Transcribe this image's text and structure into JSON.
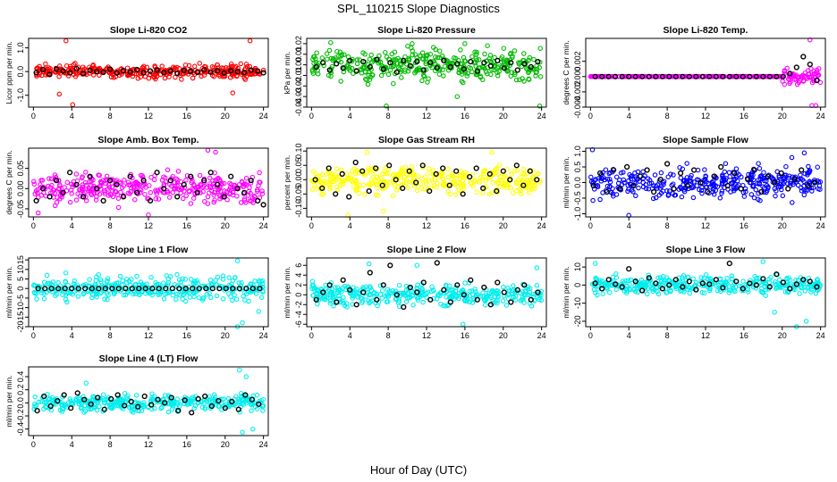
{
  "figure": {
    "title": "SPL_110215  Slope Diagnostics",
    "xlabel": "Hour of Day (UTC)"
  },
  "chart_data": [
    {
      "type": "scatter",
      "title": "Slope Li-820 CO2",
      "ylabel": "Licor ppm per min.",
      "color": "#ff0000",
      "xlim": [
        -0.5,
        24.5
      ],
      "ylim": [
        -1.5,
        1.4
      ],
      "xticks": [
        0,
        4,
        8,
        12,
        16,
        20,
        24
      ],
      "yticks": [
        -1.0,
        0.0,
        1.0
      ],
      "ytick_labels": [
        "-1.0",
        "0.0",
        "1.0"
      ],
      "spread": 0.22,
      "outliers": [
        [
          3.4,
          1.3
        ],
        [
          22.6,
          1.3
        ],
        [
          4.1,
          -1.4
        ],
        [
          2.7,
          -0.95
        ],
        [
          20.8,
          -0.9
        ]
      ],
      "x": [
        0.3,
        1.0,
        1.7,
        2.4,
        3.1,
        3.8,
        4.5,
        5.2,
        5.9,
        6.6,
        7.3,
        8.0,
        8.7,
        9.4,
        10.1,
        10.8,
        11.5,
        12.2,
        12.9,
        13.6,
        14.3,
        15.0,
        15.7,
        16.4,
        17.1,
        17.8,
        18.5,
        19.2,
        19.9,
        20.6,
        21.3,
        22.0,
        22.7,
        23.4,
        24.0
      ],
      "y": [
        -0.05,
        0.08,
        -0.12,
        0.1,
        0.02,
        -0.05,
        0.12,
        -0.08,
        0.05,
        0.0,
        -0.03,
        0.1,
        -0.06,
        0.04,
        -0.02,
        0.08,
        -0.05,
        0.02,
        0.06,
        -0.04,
        0.03,
        -0.07,
        0.05,
        0.01,
        -0.03,
        0.07,
        -0.02,
        0.04,
        -0.06,
        0.03,
        0.0,
        -0.04,
        0.06,
        0.02,
        -0.05
      ]
    },
    {
      "type": "scatter",
      "title": "Slope Li-820 Pressure",
      "ylabel": "kPa per min.",
      "color": "#00bb00",
      "xlim": [
        -0.5,
        24.5
      ],
      "ylim": [
        -0.04,
        0.025
      ],
      "xticks": [
        0,
        4,
        8,
        12,
        16,
        20,
        24
      ],
      "yticks": [
        -0.04,
        -0.03,
        -0.02,
        -0.01,
        0.0,
        0.01,
        0.02
      ],
      "ytick_labels": [
        "-0.04",
        "-0.03",
        "-0.02",
        "-0.01",
        "0.00",
        "0.01",
        "0.02"
      ],
      "spread": 0.012,
      "outliers": [
        [
          2.0,
          0.021
        ],
        [
          10.5,
          0.02
        ],
        [
          16.0,
          0.02
        ],
        [
          7.8,
          -0.039
        ],
        [
          23.8,
          -0.039
        ],
        [
          15.2,
          -0.03
        ]
      ],
      "x": [
        0.5,
        1.2,
        1.9,
        2.6,
        3.3,
        4.0,
        4.7,
        5.4,
        6.1,
        6.8,
        7.5,
        8.2,
        8.9,
        9.6,
        10.3,
        11.0,
        11.7,
        12.4,
        13.1,
        13.8,
        14.5,
        15.2,
        15.9,
        16.6,
        17.3,
        18.0,
        18.7,
        19.4,
        20.1,
        20.8,
        21.5,
        22.2,
        22.9,
        23.6
      ],
      "y": [
        -0.002,
        0.002,
        -0.005,
        0.001,
        -0.003,
        0.004,
        -0.006,
        0.003,
        -0.002,
        0.005,
        -0.004,
        0.002,
        -0.007,
        0.004,
        -0.001,
        0.003,
        -0.005,
        0.002,
        -0.003,
        0.004,
        -0.002,
        0.001,
        -0.004,
        0.003,
        -0.006,
        0.002,
        -0.001,
        0.004,
        -0.003,
        0.002,
        -0.005,
        0.001,
        -0.002,
        0.003
      ]
    },
    {
      "type": "scatter",
      "title": "Slope Li-820 Temp.",
      "ylabel": "degrees C per min.",
      "color": "#ff00ff",
      "xlim": [
        -0.5,
        24.5
      ],
      "ylim": [
        -0.004,
        0.005
      ],
      "xticks": [
        0,
        4,
        8,
        12,
        16,
        20,
        24
      ],
      "yticks": [
        -0.004,
        -0.002,
        0.0,
        0.002
      ],
      "ytick_labels": [
        "-0.004",
        "-0.002",
        "0.000",
        "0.002"
      ],
      "flat_until": 20.0,
      "spread": 0.0008,
      "outliers": [
        [
          22.9,
          0.0048
        ],
        [
          23.1,
          -0.0038
        ],
        [
          23.5,
          -0.0038
        ]
      ],
      "x": [
        0.5,
        1.2,
        1.9,
        2.6,
        3.3,
        4.0,
        4.7,
        5.4,
        6.1,
        6.8,
        7.5,
        8.2,
        8.9,
        9.6,
        10.3,
        11.0,
        11.7,
        12.4,
        13.1,
        13.8,
        14.5,
        15.2,
        15.9,
        16.6,
        17.3,
        18.0,
        18.7,
        19.4,
        20.1,
        20.8,
        21.5,
        22.2,
        22.9,
        23.6
      ],
      "y": [
        0,
        0,
        0,
        0,
        0,
        0,
        0,
        0,
        0,
        0,
        0,
        0,
        0,
        0,
        0,
        0,
        0,
        0,
        0,
        0,
        0,
        0,
        0,
        0,
        0,
        0,
        0,
        0,
        0,
        0.0004,
        0.0012,
        0.0026,
        0.0016,
        -0.0005
      ]
    },
    {
      "type": "scatter",
      "title": "Slope Amb. Box Temp.",
      "ylabel": "degrees C per min.",
      "color": "#ff00ff",
      "xlim": [
        -0.5,
        24.5
      ],
      "ylim": [
        -0.07,
        0.1
      ],
      "xticks": [
        0,
        4,
        8,
        12,
        16,
        20,
        24
      ],
      "yticks": [
        -0.05,
        0.0,
        0.05
      ],
      "ytick_labels": [
        "-0.05",
        "0.00",
        "0.05"
      ],
      "spread": 0.03,
      "outliers": [
        [
          18.2,
          0.095
        ],
        [
          19.0,
          0.09
        ],
        [
          12.0,
          -0.065
        ],
        [
          0.5,
          -0.06
        ]
      ],
      "x": [
        0.3,
        1.0,
        1.7,
        2.4,
        3.1,
        3.8,
        4.5,
        5.2,
        5.9,
        6.6,
        7.3,
        8.0,
        8.7,
        9.4,
        10.1,
        10.8,
        11.5,
        12.2,
        12.9,
        13.6,
        14.3,
        15.0,
        15.7,
        16.4,
        17.1,
        17.8,
        18.5,
        19.2,
        19.9,
        20.6,
        21.3,
        22.0,
        22.7,
        23.4,
        24.0
      ],
      "y": [
        -0.03,
        0.0,
        -0.02,
        0.02,
        -0.01,
        0.04,
        0.01,
        -0.02,
        0.03,
        0.0,
        -0.03,
        0.02,
        0.01,
        -0.02,
        0.03,
        -0.01,
        0.02,
        -0.03,
        0.04,
        0.0,
        0.02,
        -0.02,
        0.01,
        0.03,
        -0.01,
        0.02,
        0.04,
        0.01,
        -0.02,
        0.03,
        0.0,
        -0.01,
        0.02,
        -0.03,
        -0.04
      ]
    },
    {
      "type": "scatter",
      "title": "Slope Gas Stream RH",
      "ylabel": "percent per min.",
      "color": "#ffff00",
      "xlim": [
        -0.5,
        24.5
      ],
      "ylim": [
        -0.13,
        0.11
      ],
      "xticks": [
        0,
        4,
        8,
        12,
        16,
        20,
        24
      ],
      "yticks": [
        -0.1,
        -0.05,
        0.0,
        0.05,
        0.1
      ],
      "ytick_labels": [
        "-0.10",
        "-0.05",
        "0.00",
        "0.05",
        "0.10"
      ],
      "spread": 0.04,
      "outliers": [
        [
          3.8,
          -0.125
        ],
        [
          5.8,
          0.095
        ],
        [
          7.5,
          -0.11
        ],
        [
          18.8,
          0.095
        ]
      ],
      "x": [
        0.4,
        1.1,
        1.8,
        2.5,
        3.2,
        3.9,
        4.6,
        5.3,
        6.0,
        6.7,
        7.4,
        8.1,
        8.8,
        9.5,
        10.2,
        10.9,
        11.6,
        12.3,
        13.0,
        13.7,
        14.4,
        15.1,
        15.8,
        16.5,
        17.2,
        17.9,
        18.6,
        19.3,
        20.0,
        20.7,
        21.4,
        22.1,
        22.8,
        23.5
      ],
      "y": [
        0.0,
        -0.03,
        0.04,
        -0.05,
        0.02,
        -0.06,
        0.06,
        0.03,
        -0.04,
        0.04,
        -0.02,
        0.05,
        0.0,
        -0.03,
        0.03,
        -0.01,
        0.05,
        -0.04,
        0.02,
        0.04,
        -0.02,
        0.03,
        -0.05,
        0.01,
        0.04,
        -0.03,
        0.02,
        -0.04,
        0.03,
        0.0,
        0.05,
        -0.02,
        0.03,
        0.0
      ]
    },
    {
      "type": "scatter",
      "title": "Slope Sample Flow",
      "ylabel": "ml/min per min.",
      "color": "#0000ff",
      "xlim": [
        -0.5,
        24.5
      ],
      "ylim": [
        -1.1,
        1.1
      ],
      "xticks": [
        0,
        4,
        8,
        12,
        16,
        20,
        24
      ],
      "yticks": [
        -1.0,
        -0.5,
        0.0,
        0.5,
        1.0
      ],
      "ytick_labels": [
        "-1.0",
        "-0.5",
        "0.0",
        "0.5",
        "1.0"
      ],
      "spread": 0.42,
      "outliers": [
        [
          0.2,
          1.05
        ],
        [
          4.0,
          -1.05
        ],
        [
          22.3,
          0.95
        ],
        [
          21.0,
          0.8
        ]
      ],
      "x": [
        0.3,
        1.0,
        1.7,
        2.4,
        3.1,
        3.8,
        4.5,
        5.2,
        5.9,
        6.6,
        7.3,
        8.0,
        8.7,
        9.4,
        10.1,
        10.8,
        11.5,
        12.2,
        12.9,
        13.6,
        14.3,
        15.0,
        15.7,
        16.4,
        17.1,
        17.8,
        18.5,
        19.2,
        19.9,
        20.6,
        21.3,
        22.0,
        22.7,
        23.4
      ],
      "y": [
        -0.1,
        0.3,
        -0.3,
        0.4,
        -0.2,
        0.5,
        -0.1,
        0.2,
        0.4,
        -0.3,
        0.1,
        0.6,
        -0.2,
        0.3,
        -0.1,
        0.4,
        0.0,
        -0.3,
        0.2,
        0.5,
        -0.1,
        0.3,
        -0.2,
        0.1,
        0.4,
        -0.3,
        0.2,
        0.0,
        0.3,
        -0.2,
        0.1,
        0.4,
        -0.1,
        0.0
      ]
    },
    {
      "type": "scatter",
      "title": "Slope Line 1 Flow",
      "ylabel": "ml/min per min.",
      "color": "#00eeee",
      "xlim": [
        -0.5,
        24.5
      ],
      "ylim": [
        -20,
        16
      ],
      "xticks": [
        0,
        4,
        8,
        12,
        16,
        20,
        24
      ],
      "yticks": [
        -20,
        -15,
        -10,
        -5,
        0,
        5,
        10,
        15
      ],
      "ytick_labels": [
        "-20",
        "-15",
        "-10",
        "-5",
        "0",
        "5",
        "10",
        "15"
      ],
      "spread": 5.0,
      "outliers": [
        [
          21.3,
          14.5
        ],
        [
          21.3,
          -20
        ],
        [
          21.8,
          -18
        ],
        [
          23.5,
          -12
        ]
      ],
      "x": [
        0.5,
        1.2,
        1.9,
        2.6,
        3.3,
        4.0,
        4.7,
        5.4,
        6.1,
        6.8,
        7.5,
        8.2,
        8.9,
        9.6,
        10.3,
        11.0,
        11.7,
        12.4,
        13.1,
        13.8,
        14.5,
        15.2,
        15.9,
        16.6,
        17.3,
        18.0,
        18.7,
        19.4,
        20.1,
        20.8,
        21.5,
        22.2,
        22.9,
        23.6
      ],
      "y": [
        0,
        0,
        0,
        0,
        0,
        0,
        0,
        0,
        0,
        0,
        0,
        0,
        0,
        0,
        0,
        0,
        0,
        0,
        0,
        0,
        0,
        0,
        0,
        0,
        0,
        0,
        0,
        0,
        0,
        0,
        0,
        0,
        0,
        0
      ]
    },
    {
      "type": "scatter",
      "title": "Slope Line 2 Flow",
      "ylabel": "ml/min per min.",
      "color": "#00eeee",
      "xlim": [
        -0.5,
        24.5
      ],
      "ylim": [
        -6.5,
        7.5
      ],
      "xticks": [
        0,
        4,
        8,
        12,
        16,
        20,
        24
      ],
      "yticks": [
        -6,
        -4,
        -2,
        0,
        2,
        4,
        6
      ],
      "ytick_labels": [
        "-6",
        "-4",
        "-2",
        "0",
        "2",
        "4",
        "6"
      ],
      "spread": 2.0,
      "outliers": [
        [
          6.0,
          6.3
        ],
        [
          11.0,
          6.0
        ],
        [
          15.8,
          -6.0
        ],
        [
          23.5,
          5.5
        ]
      ],
      "x": [
        0.5,
        1.2,
        1.9,
        2.6,
        3.3,
        4.0,
        4.7,
        5.4,
        6.1,
        6.8,
        7.5,
        8.2,
        8.9,
        9.6,
        10.3,
        11.0,
        11.7,
        12.4,
        13.1,
        13.8,
        14.5,
        15.2,
        15.9,
        16.6,
        17.3,
        18.0,
        18.7,
        19.4,
        20.1,
        20.8,
        21.5,
        22.2,
        22.9,
        23.6
      ],
      "y": [
        -1.0,
        0.5,
        2.0,
        -1.5,
        3.0,
        1.0,
        -2.0,
        0.5,
        4.5,
        -1.0,
        2.0,
        6.0,
        0.0,
        -2.5,
        1.5,
        0.5,
        2.5,
        -1.0,
        6.5,
        1.0,
        -1.5,
        2.0,
        0.0,
        3.0,
        -1.0,
        1.5,
        -2.0,
        2.5,
        0.5,
        -1.5,
        1.0,
        2.0,
        -1.0,
        0.5
      ]
    },
    {
      "type": "scatter",
      "title": "Slope Line 3 Flow",
      "ylabel": "ml/min per min.",
      "color": "#00eeee",
      "xlim": [
        -0.5,
        24.5
      ],
      "ylim": [
        -23,
        15
      ],
      "xticks": [
        0,
        4,
        8,
        12,
        16,
        20,
        24
      ],
      "yticks": [
        -20,
        -10,
        0,
        10
      ],
      "ytick_labels": [
        "-20",
        "-10",
        "0",
        "10"
      ],
      "spread": 4.0,
      "outliers": [
        [
          19.2,
          -15.0
        ],
        [
          21.5,
          -23.0
        ],
        [
          22.5,
          -20.0
        ],
        [
          0.5,
          12.0
        ],
        [
          18.0,
          13.0
        ]
      ],
      "x": [
        0.5,
        1.2,
        1.9,
        2.6,
        3.3,
        4.0,
        4.7,
        5.4,
        6.1,
        6.8,
        7.5,
        8.2,
        8.9,
        9.6,
        10.3,
        11.0,
        11.7,
        12.4,
        13.1,
        13.8,
        14.5,
        15.2,
        15.9,
        16.6,
        17.3,
        18.0,
        18.7,
        19.4,
        20.1,
        20.8,
        21.5,
        22.2,
        22.9,
        23.6
      ],
      "y": [
        1.0,
        -2.0,
        3.0,
        0.5,
        -1.0,
        9.0,
        2.0,
        -3.0,
        4.0,
        1.0,
        -2.0,
        0.0,
        3.0,
        -1.0,
        2.0,
        -2.5,
        1.0,
        0.5,
        3.0,
        -1.5,
        12.0,
        2.0,
        -2.0,
        1.0,
        0.0,
        3.5,
        -1.0,
        6.0,
        1.5,
        -2.0,
        0.5,
        3.0,
        2.0,
        -1.0
      ]
    },
    {
      "type": "scatter",
      "title": "Slope Line 4 (LT) Flow",
      "ylabel": "ml/min per min.",
      "color": "#00eeee",
      "xlim": [
        -0.5,
        24.5
      ],
      "ylim": [
        -0.5,
        0.55
      ],
      "xticks": [
        0,
        4,
        8,
        12,
        16,
        20,
        24
      ],
      "yticks": [
        -0.4,
        -0.2,
        0.0,
        0.2,
        0.4
      ],
      "ytick_labels": [
        "-0.4",
        "-0.2",
        "0.0",
        "0.2",
        "0.4"
      ],
      "spread": 0.1,
      "outliers": [
        [
          21.5,
          0.5
        ],
        [
          21.8,
          -0.45
        ],
        [
          22.9,
          -0.4
        ],
        [
          22.2,
          0.4
        ],
        [
          5.5,
          0.3
        ]
      ],
      "x": [
        0.4,
        1.1,
        1.8,
        2.5,
        3.2,
        3.9,
        4.6,
        5.3,
        6.0,
        6.7,
        7.4,
        8.1,
        8.8,
        9.5,
        10.2,
        10.9,
        11.6,
        12.3,
        13.0,
        13.7,
        14.4,
        15.1,
        15.8,
        16.5,
        17.2,
        17.9,
        18.6,
        19.3,
        20.0,
        20.7,
        21.4,
        22.1,
        22.8,
        23.5
      ],
      "y": [
        -0.12,
        0.1,
        -0.05,
        0.03,
        0.12,
        -0.08,
        0.15,
        0.05,
        -0.02,
        0.08,
        -0.1,
        0.06,
        0.12,
        -0.04,
        0.02,
        -0.06,
        0.1,
        -0.03,
        0.05,
        0.0,
        0.08,
        -0.12,
        0.04,
        -0.15,
        0.06,
        0.1,
        -0.05,
        0.03,
        -0.08,
        0.02,
        -0.1,
        0.12,
        0.05,
        -0.02
      ]
    }
  ]
}
